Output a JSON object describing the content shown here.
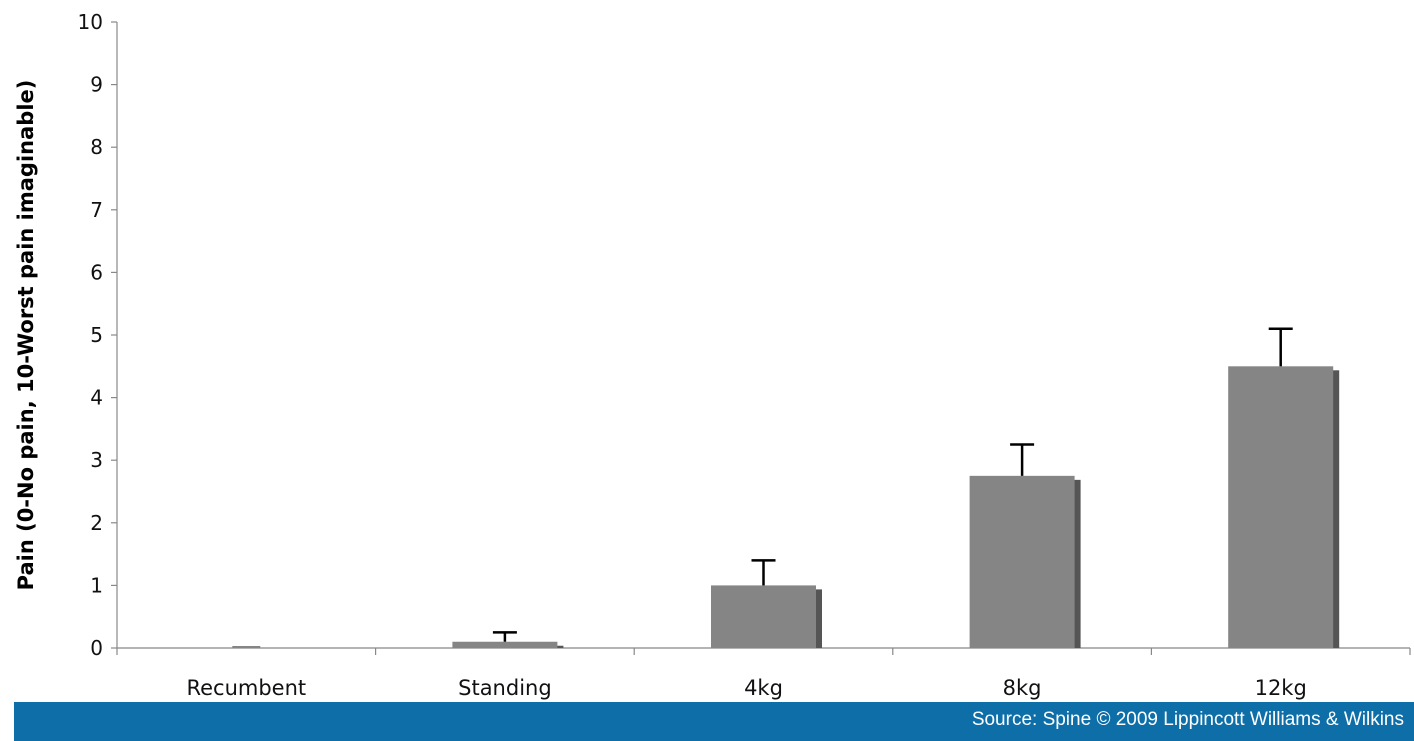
{
  "chart_data": {
    "type": "bar",
    "categories": [
      "Recumbent",
      "Standing",
      "4kg",
      "8kg",
      "12kg"
    ],
    "values": [
      0,
      0.1,
      1.0,
      2.75,
      4.5
    ],
    "error_bars": [
      0,
      0.15,
      0.4,
      0.5,
      0.6
    ],
    "ylabel": "Pain (0-No pain, 10-Worst pain imaginable)",
    "xlabel": "",
    "ylim": [
      0,
      10
    ],
    "yticks": [
      0,
      1,
      2,
      3,
      4,
      5,
      6,
      7,
      8,
      9,
      10
    ],
    "grid": false,
    "bar_color": "#858585",
    "bar_shadow_color": "#555555"
  },
  "footer": {
    "source": "Source: Spine © 2009 Lippincott Williams & Wilkins",
    "color": "#0d6ea8"
  }
}
